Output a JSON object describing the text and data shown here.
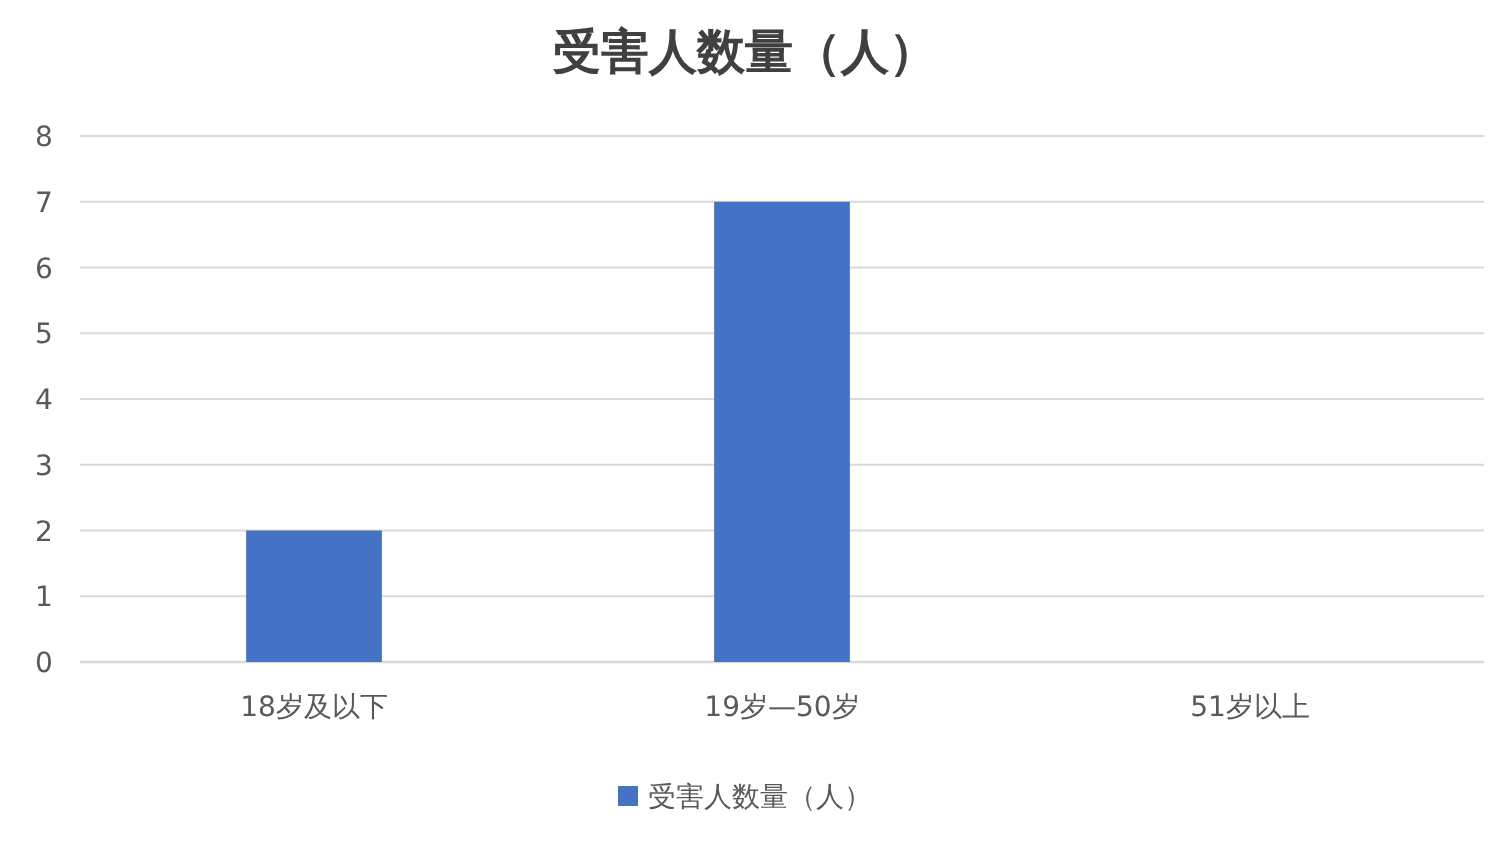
{
  "chart_data": {
    "type": "bar",
    "title": "受害人数量（人）",
    "categories": [
      "18岁及以下",
      "19岁—50岁",
      "51岁以上"
    ],
    "series": [
      {
        "name": "受害人数量（人）",
        "color": "#4472c4",
        "values": [
          2,
          7,
          0
        ]
      }
    ],
    "ylim": [
      0,
      8
    ],
    "yticks": [
      0,
      1,
      2,
      3,
      4,
      5,
      6,
      7,
      8
    ],
    "grid": "y",
    "legend": "bottom"
  }
}
